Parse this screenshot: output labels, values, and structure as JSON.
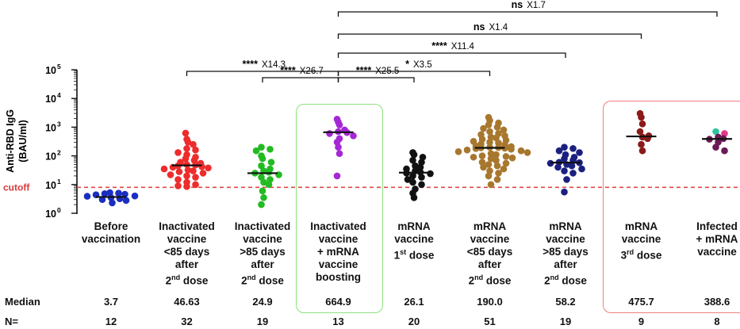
{
  "chart_data": {
    "type": "scatter",
    "y_scale": "log",
    "ylim_exponent": [
      0,
      5
    ],
    "yticks": [
      {
        "base": "10",
        "exp": "0"
      },
      {
        "base": "10",
        "exp": "1"
      },
      {
        "base": "10",
        "exp": "2"
      },
      {
        "base": "10",
        "exp": "3"
      },
      {
        "base": "10",
        "exp": "4"
      },
      {
        "base": "10",
        "exp": "5"
      }
    ],
    "ylabel_line1": "Anti-RBD IgG",
    "ylabel_line2": "(BAU/ml)",
    "cutoff_label": "cutoff",
    "cutoff_value": 8,
    "categories": [
      {
        "label": "Before\nvaccination",
        "median_label": "3.7",
        "median": 3.7,
        "n": "12",
        "color": "#1a2fbf",
        "points": [
          4.6,
          3.2,
          5.0,
          3.5,
          2.3,
          4.0,
          5.2,
          2.8,
          4.4,
          3.0,
          4.8,
          3.9
        ]
      },
      {
        "label": "Inactivated\nvaccine\n<85 days\nafter\n2nd dose",
        "median_label": "46.63",
        "median": 46.63,
        "n": "32",
        "color": "#ee2c2c",
        "points": [
          620,
          380,
          300,
          250,
          180,
          160,
          130,
          110,
          90,
          80,
          70,
          60,
          55,
          50,
          48,
          45,
          42,
          40,
          38,
          35,
          32,
          30,
          28,
          25,
          22,
          20,
          18,
          15,
          12,
          10,
          9,
          8.5
        ]
      },
      {
        "label": "Inactivated\nvaccine\n>85 days\nafter\n2nd dose",
        "median_label": "24.9",
        "median": 24.9,
        "n": "19",
        "color": "#22bb22",
        "points": [
          200,
          170,
          150,
          100,
          80,
          60,
          45,
          35,
          30,
          27,
          25,
          22,
          18,
          15,
          12,
          10,
          6,
          3.5,
          2.0
        ]
      },
      {
        "label": "Inactivated\nvaccine\n+ mRNA\nvaccine\nboosting",
        "median_label": "664.9",
        "median": 664.9,
        "n": "13",
        "color": "#a428d6",
        "points": [
          1900,
          1500,
          1200,
          800,
          700,
          650,
          600,
          500,
          400,
          300,
          200,
          120,
          20
        ]
      },
      {
        "label": "mRNA\nvaccine\n1st dose",
        "median_label": "26.1",
        "median": 26.1,
        "n": "20",
        "color": "#111111",
        "points": [
          130,
          110,
          90,
          70,
          60,
          45,
          40,
          35,
          30,
          27,
          25,
          24,
          20,
          18,
          15,
          12,
          10,
          7,
          5,
          3.5
        ]
      },
      {
        "label": "mRNA\nvaccine\n<85 days\nafter\n2nd dose",
        "median_label": "190.0",
        "median": 190.0,
        "n": "51",
        "color": "#a8772e",
        "points": [
          2200,
          1700,
          1400,
          1200,
          1000,
          900,
          800,
          700,
          600,
          550,
          500,
          450,
          420,
          380,
          350,
          320,
          300,
          280,
          260,
          240,
          220,
          210,
          200,
          195,
          190,
          185,
          180,
          170,
          160,
          150,
          140,
          130,
          120,
          110,
          100,
          95,
          90,
          85,
          80,
          70,
          60,
          55,
          50,
          45,
          40,
          35,
          30,
          25,
          20,
          15,
          10
        ]
      },
      {
        "label": "mRNA\nvaccine\n>85 days\nafter\n2nd dose",
        "median_label": "58.2",
        "median": 58.2,
        "n": "19",
        "color": "#1b2080",
        "points": [
          200,
          180,
          150,
          130,
          110,
          90,
          80,
          70,
          60,
          58,
          55,
          50,
          45,
          40,
          35,
          30,
          25,
          15,
          5.5
        ]
      },
      {
        "label": "mRNA\nvaccine\n3rd dose",
        "median_label": "475.7",
        "median": 475.7,
        "n": "9",
        "color": "#8b1a1a",
        "points": [
          3000,
          2200,
          1300,
          700,
          500,
          450,
          400,
          250,
          150
        ]
      },
      {
        "label": "Infected\n+ mRNA\nvaccine",
        "median_label": "388.6",
        "median": 388.6,
        "n": "8",
        "color": "#6b1a55",
        "points": [
          700,
          600,
          450,
          400,
          380,
          300,
          200,
          150
        ],
        "point_colors": [
          "#2ec4a0",
          "#e03a8a"
        ]
      }
    ],
    "comparisons": [
      {
        "from": 3,
        "to": 8,
        "sig": "ns",
        "fold": "X1.7",
        "level": 0
      },
      {
        "from": 3,
        "to": 7,
        "sig": "ns",
        "fold": "X1.4",
        "level": 1
      },
      {
        "from": 3,
        "to": 6,
        "sig": "****",
        "fold": "X11.4",
        "level": 2
      },
      {
        "from": 3,
        "to": 5,
        "sig": "*",
        "fold": "X3.5",
        "level": 3
      },
      {
        "from": 1,
        "to": 3,
        "sig": "****",
        "fold": "X14.3",
        "level": 3
      },
      {
        "from": 2,
        "to": 3,
        "sig": "****",
        "fold": "X26.7",
        "level": 4
      },
      {
        "from": 3,
        "to": 4,
        "sig": "****",
        "fold": "X25.5",
        "level": 4
      }
    ]
  },
  "table": {
    "median_header": "Median",
    "n_header": "N="
  }
}
